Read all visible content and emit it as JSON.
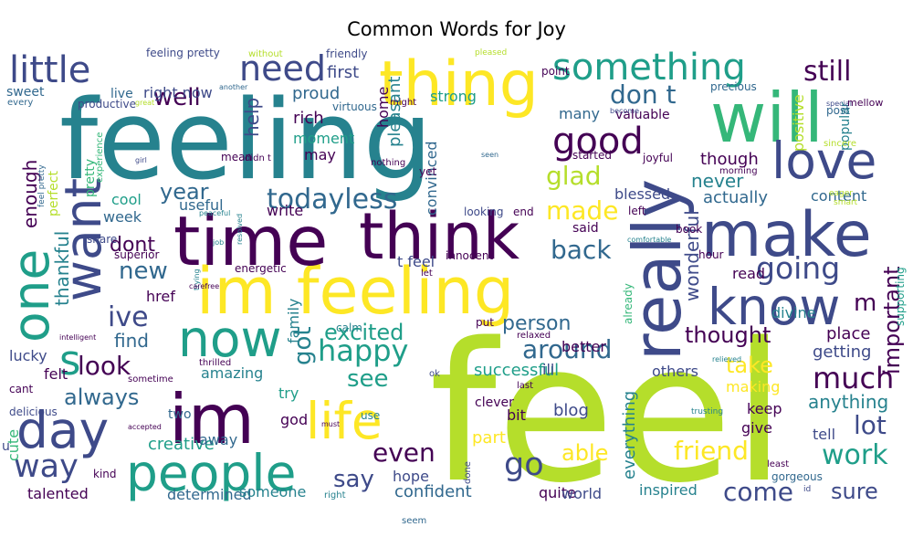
{
  "title": "Common Words for Joy",
  "palette": {
    "purple": "#440154",
    "indigo": "#3e4a89",
    "blue": "#31688e",
    "teal": "#26828e",
    "green": "#1f9e89",
    "lightgreen": "#35b779",
    "lime": "#6ece58",
    "yellowgreen": "#b5de2b",
    "yellow": "#fde725"
  },
  "words": [
    "feel",
    "feeling",
    "im feeling",
    "time",
    "im",
    "think",
    "people",
    "make",
    "really",
    "will",
    "thing",
    "know",
    "now",
    "one",
    "want",
    "day",
    "life",
    "love",
    "little",
    "something",
    "need",
    "good",
    "still",
    "todayless",
    "going",
    "happy",
    "much",
    "work",
    "way",
    "go",
    "even",
    "friend",
    "come",
    "lot",
    "s",
    "around",
    "excited",
    "see",
    "say",
    "ive",
    "back",
    "made",
    "glad",
    "important",
    "don t",
    "year",
    "well",
    "new",
    "look",
    "always",
    "enough",
    "thankful",
    "dont",
    "got",
    "find",
    "thought",
    "take",
    "able",
    "person",
    "sure",
    "anything",
    "m",
    "help",
    "proud",
    "first",
    "though",
    "never",
    "actually",
    "wonderful",
    "content",
    "everything",
    "part",
    "confident",
    "hope",
    "blessed",
    "successful",
    "amazing",
    "others",
    "felt",
    "lucky",
    "cute",
    "creative",
    "determined",
    "talented",
    "someone",
    "quite",
    "world",
    "inspired",
    "blog",
    "bit",
    "clever",
    "ill",
    "keep",
    "give",
    "tell",
    "making",
    "getting",
    "place",
    "read",
    "divine",
    "better",
    "calm",
    "family",
    "god",
    "try",
    "two",
    "away",
    "href",
    "useful",
    "cool",
    "week",
    "write",
    "rich",
    "moment",
    "may",
    "pleasant",
    "home",
    "convinced",
    "strong",
    "many",
    "positive",
    "popular",
    "post",
    "precious",
    "valuable",
    "point",
    "joyful",
    "started",
    "yet",
    "said",
    "t feel",
    "let",
    "put",
    "perfect",
    "sweet",
    "live",
    "right now",
    "feeling pretty",
    "without",
    "friendly",
    "productive",
    "virtuous",
    "might",
    "energetic",
    "superior",
    "pretty",
    "experience",
    "mean",
    "didn t",
    "nothing",
    "looking",
    "end",
    "innocent",
    "relaxed",
    "already",
    "supporting",
    "hour",
    "book",
    "comfortable",
    "left",
    "sincere",
    "smart",
    "eager",
    "morning",
    "special",
    "mellow",
    "become",
    "pleased",
    "great",
    "another",
    "every",
    "feel pretty",
    "girl",
    "share",
    "peaceful",
    "resolved",
    "job",
    "trying",
    "carefree",
    "intelligent",
    "thrilled",
    "sometime",
    "cant",
    "delicious",
    "accepted",
    "must",
    "use",
    "trusting",
    "relieved",
    "last",
    "ok",
    "seen",
    "done",
    "least",
    "id",
    "kind",
    "u",
    "right",
    "gorgeous",
    "seem"
  ]
}
